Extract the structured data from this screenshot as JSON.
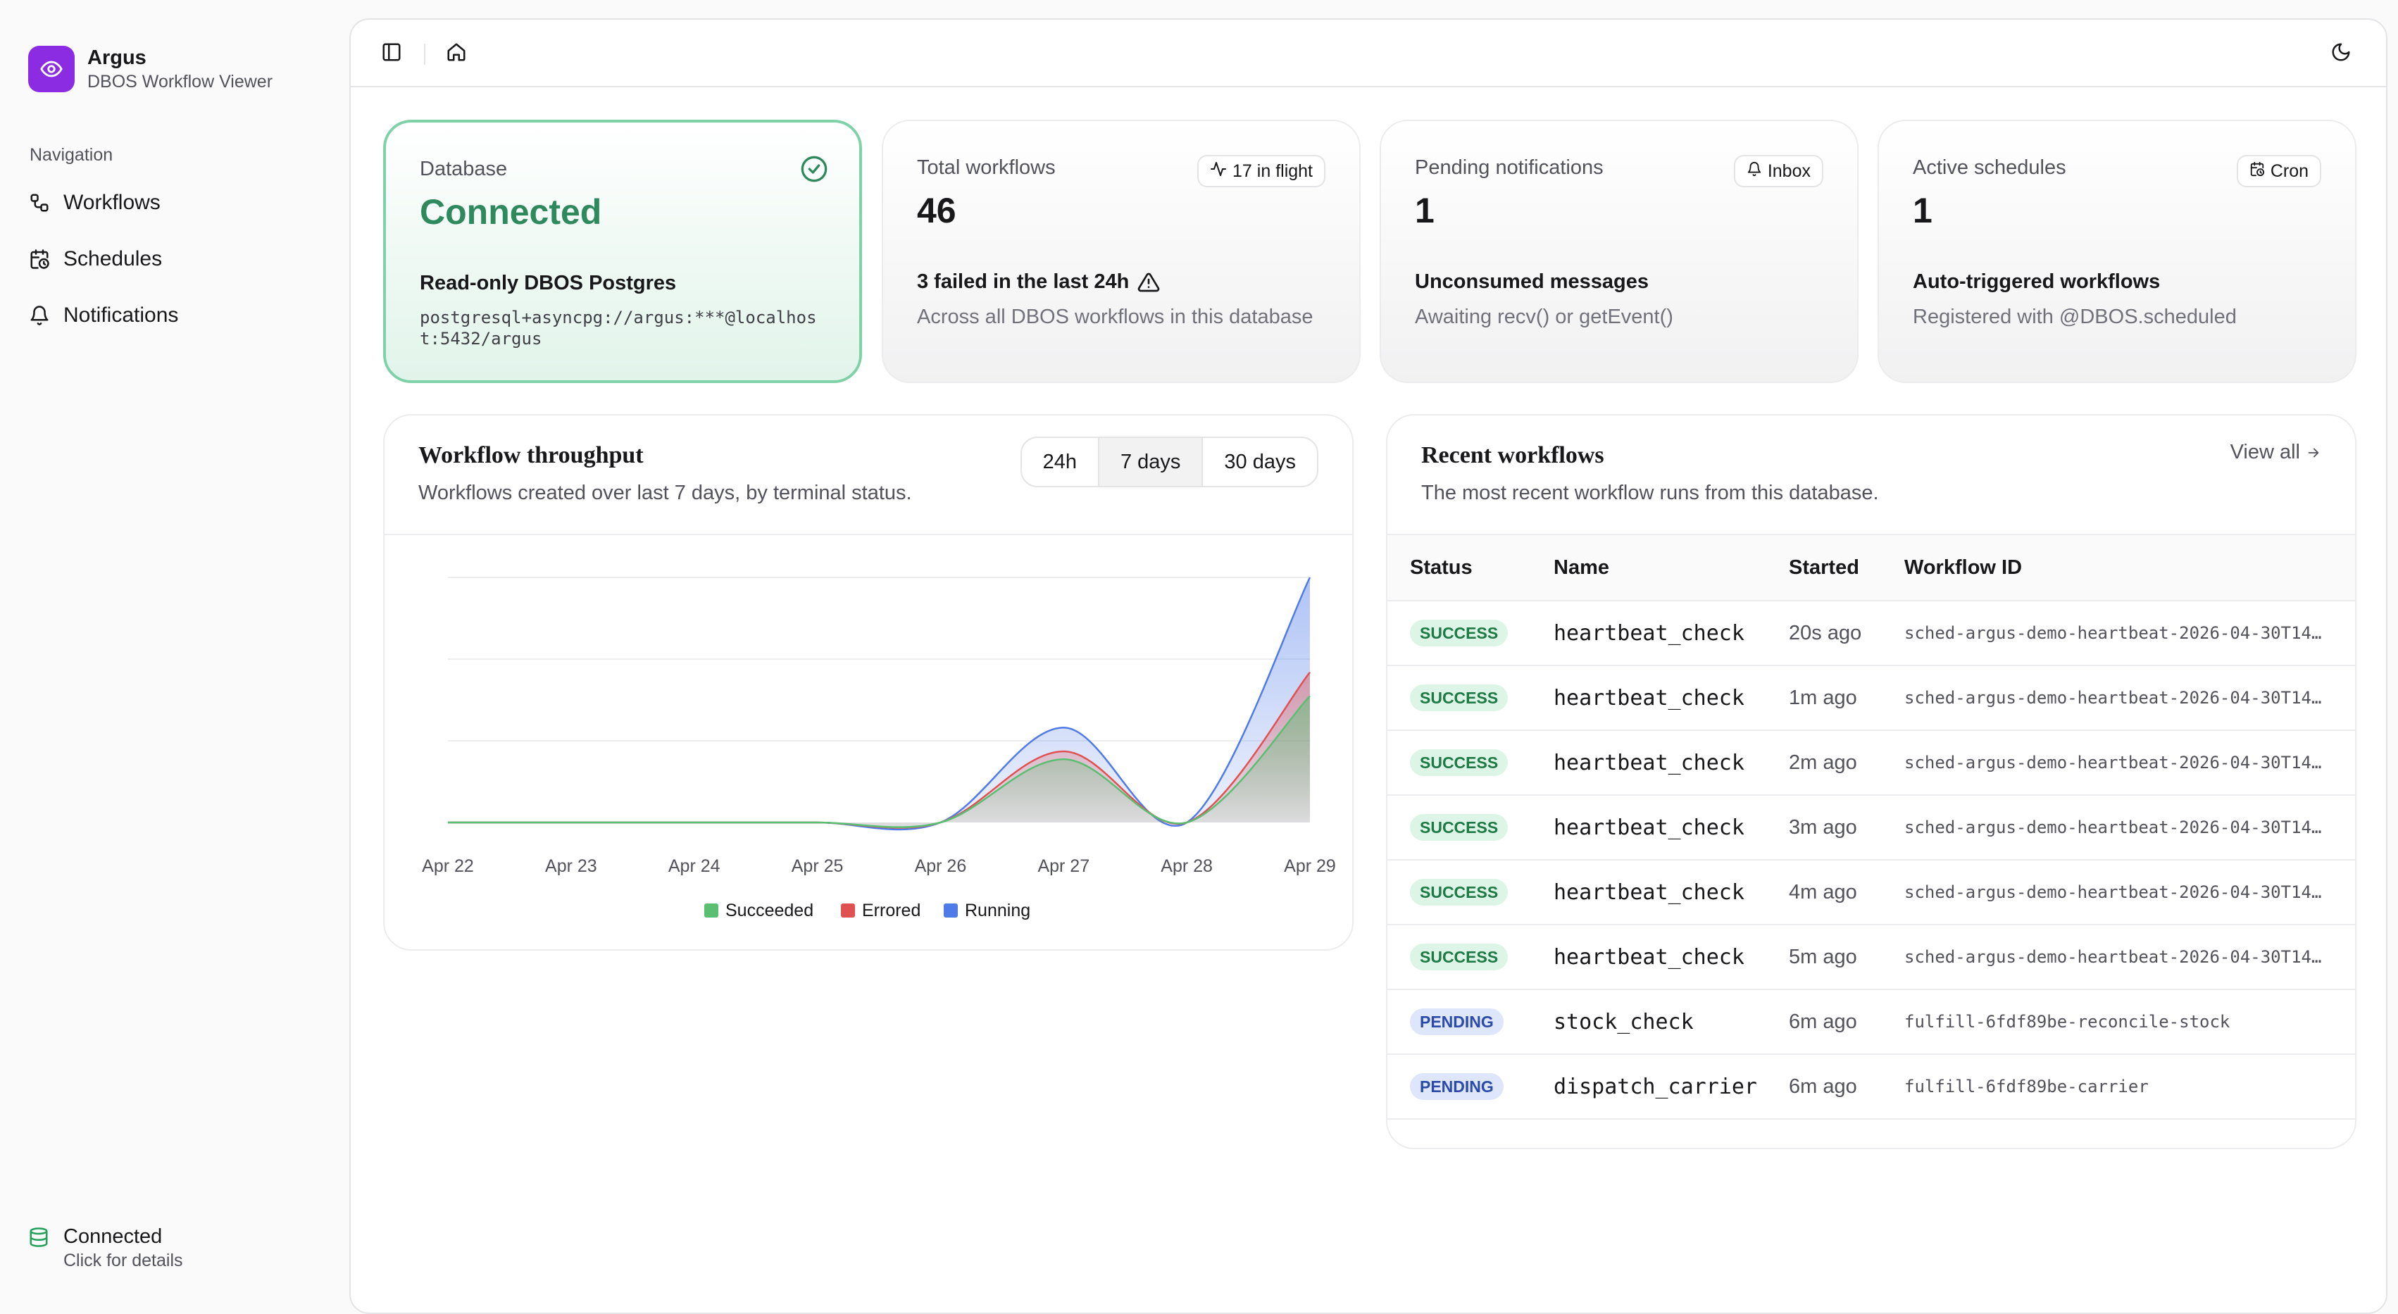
{
  "brand": {
    "name": "Argus",
    "subtitle": "DBOS Workflow Viewer"
  },
  "nav": {
    "heading": "Navigation",
    "items": [
      {
        "label": "Workflows",
        "icon": "workflow-icon"
      },
      {
        "label": "Schedules",
        "icon": "calendar-clock-icon"
      },
      {
        "label": "Notifications",
        "icon": "bell-icon"
      }
    ]
  },
  "sidebar_status": {
    "label": "Connected",
    "hint": "Click for details"
  },
  "cards": {
    "database": {
      "label": "Database",
      "value": "Connected",
      "title": "Read-only DBOS Postgres",
      "connection": "postgresql+asyncpg://argus:***@localhost:5432/argus"
    },
    "total": {
      "label": "Total workflows",
      "value": "46",
      "badge": "17 in flight",
      "title": "3 failed in the last 24h",
      "desc": "Across all DBOS workflows in this database"
    },
    "pending": {
      "label": "Pending notifications",
      "value": "1",
      "badge": "Inbox",
      "title": "Unconsumed messages",
      "desc": "Awaiting recv() or getEvent()"
    },
    "schedules": {
      "label": "Active schedules",
      "value": "1",
      "badge": "Cron",
      "title": "Auto-triggered workflows",
      "desc": "Registered with @DBOS.scheduled"
    }
  },
  "throughput": {
    "title": "Workflow throughput",
    "desc": "Workflows created over last 7 days, by terminal status.",
    "ranges": [
      "24h",
      "7 days",
      "30 days"
    ],
    "active_range": "7 days"
  },
  "chart_data": {
    "type": "area",
    "stacked": true,
    "x": [
      "Apr 22",
      "Apr 23",
      "Apr 24",
      "Apr 25",
      "Apr 26",
      "Apr 27",
      "Apr 28",
      "Apr 29"
    ],
    "series": [
      {
        "name": "Succeeded",
        "color": "#5bbf72",
        "values": [
          0,
          0,
          0,
          0,
          0,
          8,
          0,
          16
        ]
      },
      {
        "name": "Errored",
        "color": "#e05252",
        "values": [
          0,
          0,
          0,
          0,
          0,
          1,
          0,
          3
        ]
      },
      {
        "name": "Running",
        "color": "#4f7be8",
        "values": [
          0,
          0,
          0,
          0,
          0,
          3,
          0,
          12
        ]
      }
    ],
    "ylim": [
      0,
      31
    ],
    "grid": true,
    "legend": "bottom-center"
  },
  "recent": {
    "title": "Recent workflows",
    "desc": "The most recent workflow runs from this database.",
    "view_all": "View all",
    "columns": [
      "Status",
      "Name",
      "Started",
      "Workflow ID"
    ],
    "rows": [
      {
        "status": "SUCCESS",
        "name": "heartbeat_check",
        "started": "20s ago",
        "id": "sched-argus-demo-heartbeat-2026-04-30T14…"
      },
      {
        "status": "SUCCESS",
        "name": "heartbeat_check",
        "started": "1m ago",
        "id": "sched-argus-demo-heartbeat-2026-04-30T14…"
      },
      {
        "status": "SUCCESS",
        "name": "heartbeat_check",
        "started": "2m ago",
        "id": "sched-argus-demo-heartbeat-2026-04-30T14…"
      },
      {
        "status": "SUCCESS",
        "name": "heartbeat_check",
        "started": "3m ago",
        "id": "sched-argus-demo-heartbeat-2026-04-30T14…"
      },
      {
        "status": "SUCCESS",
        "name": "heartbeat_check",
        "started": "4m ago",
        "id": "sched-argus-demo-heartbeat-2026-04-30T14…"
      },
      {
        "status": "SUCCESS",
        "name": "heartbeat_check",
        "started": "5m ago",
        "id": "sched-argus-demo-heartbeat-2026-04-30T14…"
      },
      {
        "status": "PENDING",
        "name": "stock_check",
        "started": "6m ago",
        "id": "fulfill-6fdf89be-reconcile-stock"
      },
      {
        "status": "PENDING",
        "name": "dispatch_carrier",
        "started": "6m ago",
        "id": "fulfill-6fdf89be-carrier"
      }
    ]
  }
}
